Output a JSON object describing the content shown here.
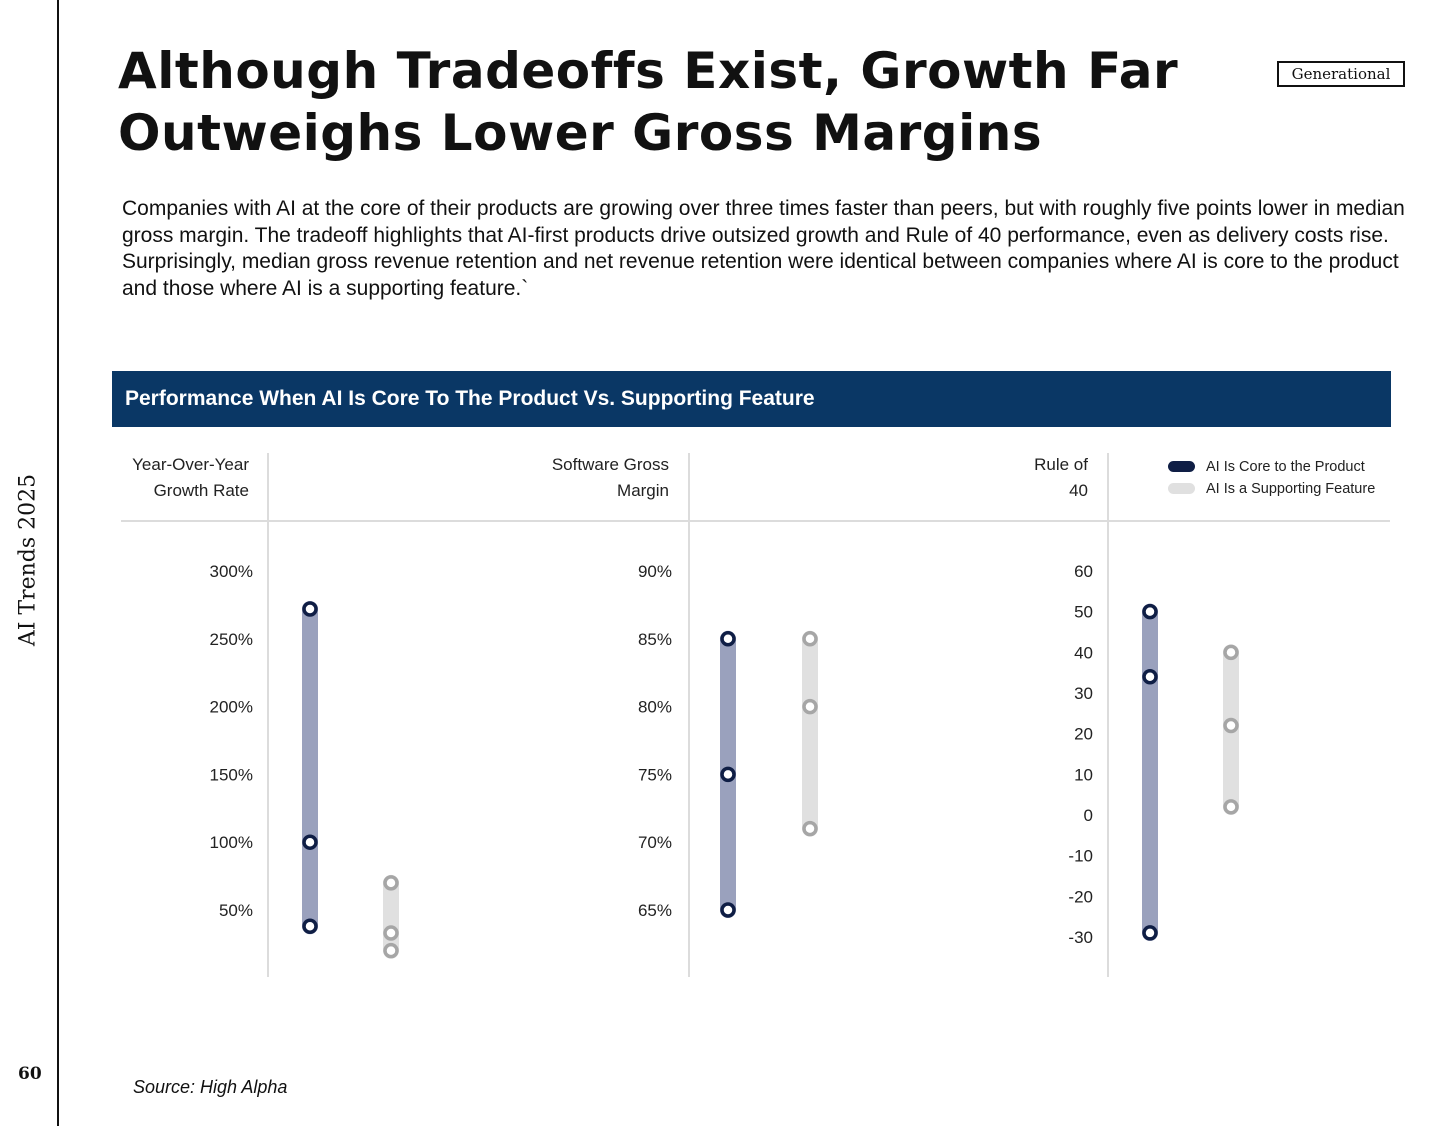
{
  "side_title": "AI Trends 2025",
  "page_number": "60",
  "brand": "Generational",
  "headline": "Although Tradeoffs Exist, Growth Far Outweighs Lower Gross Margins",
  "intro": "Companies with AI at the core of their products are growing over three times faster than peers, but with roughly five points lower in median gross margin. The tradeoff highlights that AI-first products drive outsized growth and Rule of 40 performance, even as delivery costs rise. Surprisingly, median gross revenue retention and net revenue retention were identical between companies where AI is core to the product and those where AI is a supporting feature.`",
  "source": "Source: High Alpha",
  "chart_data": {
    "type": "range-dot",
    "title": "Performance When AI Is Core To The Product Vs. Supporting Feature",
    "legend": {
      "placement": "top-right",
      "entries": [
        {
          "name": "AI Is Core to the Product",
          "color": "#0f1e45",
          "bar_color": "#9aa1bd"
        },
        {
          "name": "AI Is a Supporting Feature",
          "color": "#a6a6a6",
          "bar_color": "#e0e0e0"
        }
      ]
    },
    "panels": [
      {
        "title_lines": [
          "Year-Over-Year",
          "Growth Rate"
        ],
        "ticks": [
          300,
          250,
          200,
          150,
          100,
          50
        ],
        "tick_labels": [
          "300%",
          "250%",
          "200%",
          "150%",
          "100%",
          "50%"
        ],
        "series": [
          {
            "name": "AI Is Core to the Product",
            "low": 38,
            "median": 100,
            "high": 272
          },
          {
            "name": "AI Is a Supporting Feature",
            "low": 20,
            "median": 33,
            "high": 70
          }
        ]
      },
      {
        "title_lines": [
          "Software Gross",
          "Margin"
        ],
        "ticks": [
          90,
          85,
          80,
          75,
          70,
          65
        ],
        "tick_labels": [
          "90%",
          "85%",
          "80%",
          "75%",
          "70%",
          "65%"
        ],
        "series": [
          {
            "name": "AI Is Core to the Product",
            "low": 65,
            "median": 75,
            "high": 85
          },
          {
            "name": "AI Is a Supporting Feature",
            "low": 71,
            "median": 80,
            "high": 85
          }
        ]
      },
      {
        "title_lines": [
          "Rule of",
          "40"
        ],
        "ticks": [
          60,
          50,
          40,
          30,
          20,
          10,
          0,
          -10,
          -20,
          -30
        ],
        "tick_labels": [
          "60",
          "50",
          "40",
          "30",
          "20",
          "10",
          "0",
          "-10",
          "-20",
          "-30"
        ],
        "series": [
          {
            "name": "AI Is Core to the Product",
            "low": -29,
            "median": 34,
            "high": 50
          },
          {
            "name": "AI Is a Supporting Feature",
            "low": 2,
            "median": 22,
            "high": 40
          }
        ]
      }
    ]
  }
}
